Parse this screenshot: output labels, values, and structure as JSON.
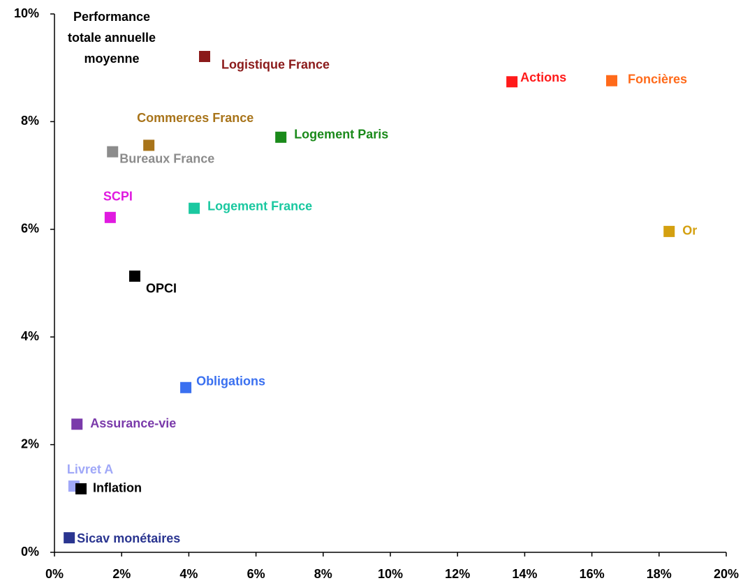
{
  "chart_data": {
    "type": "scatter",
    "annotation": [
      "Performance",
      "totale annuelle",
      "moyenne"
    ],
    "series": [
      {
        "name": "Logistique France",
        "color": "#8b1a1a",
        "x": [
          4.47
        ],
        "values": [
          9.21
        ]
      },
      {
        "name": "Actions",
        "color": "#ff1a1a",
        "x": [
          13.62
        ],
        "values": [
          8.74
        ]
      },
      {
        "name": "Foncières",
        "color": "#ff6a1a",
        "x": [
          16.59
        ],
        "values": [
          8.76
        ]
      },
      {
        "name": "Commerces France",
        "color": "#a8741a",
        "x": [
          2.81
        ],
        "values": [
          7.56
        ]
      },
      {
        "name": "Logement Paris",
        "color": "#1a8a1a",
        "x": [
          6.74
        ],
        "values": [
          7.71
        ]
      },
      {
        "name": "Bureaux France",
        "color": "#8c8c8c",
        "x": [
          1.73
        ],
        "values": [
          7.44
        ]
      },
      {
        "name": "SCPI",
        "color": "#e01ae0",
        "x": [
          1.66
        ],
        "values": [
          6.22
        ]
      },
      {
        "name": "Logement France",
        "color": "#1ac8a0",
        "x": [
          4.16
        ],
        "values": [
          6.39
        ]
      },
      {
        "name": "Or",
        "color": "#d4a010",
        "x": [
          18.3
        ],
        "values": [
          5.96
        ]
      },
      {
        "name": "OPCI",
        "color": "#000000",
        "x": [
          2.39
        ],
        "values": [
          5.13
        ]
      },
      {
        "name": "Obligations",
        "color": "#3a70f0",
        "x": [
          3.91
        ],
        "values": [
          3.06
        ]
      },
      {
        "name": "Assurance-vie",
        "color": "#7a3aaa",
        "x": [
          0.67
        ],
        "values": [
          2.38
        ]
      },
      {
        "name": "Livret A",
        "color": "#a0a8f8",
        "x": [
          0.58
        ],
        "values": [
          1.23
        ]
      },
      {
        "name": "Inflation",
        "color": "#000000",
        "x": [
          0.79
        ],
        "values": [
          1.18
        ]
      },
      {
        "name": "Sicav monétaires",
        "color": "#2a3590",
        "x": [
          0.44
        ],
        "values": [
          0.27
        ]
      }
    ],
    "xlim": [
      0,
      20
    ],
    "xticks": [
      {
        "value": 0,
        "label": "0%"
      },
      {
        "value": 2,
        "label": "2%"
      },
      {
        "value": 4,
        "label": "4%"
      },
      {
        "value": 6,
        "label": "6%"
      },
      {
        "value": 8,
        "label": "8%"
      },
      {
        "value": 10,
        "label": "10%"
      },
      {
        "value": 12,
        "label": "12%"
      },
      {
        "value": 14,
        "label": "14%"
      },
      {
        "value": 16,
        "label": "16%"
      },
      {
        "value": 18,
        "label": "18%"
      },
      {
        "value": 20,
        "label": "20%"
      }
    ],
    "ylim": [
      0,
      10
    ],
    "yticks": [
      {
        "value": 0,
        "label": "0%"
      },
      {
        "value": 2,
        "label": "2%"
      },
      {
        "value": 4,
        "label": "4%"
      },
      {
        "value": 6,
        "label": "6%"
      },
      {
        "value": 8,
        "label": "8%"
      },
      {
        "value": 10,
        "label": "10%"
      }
    ],
    "grid": false
  }
}
